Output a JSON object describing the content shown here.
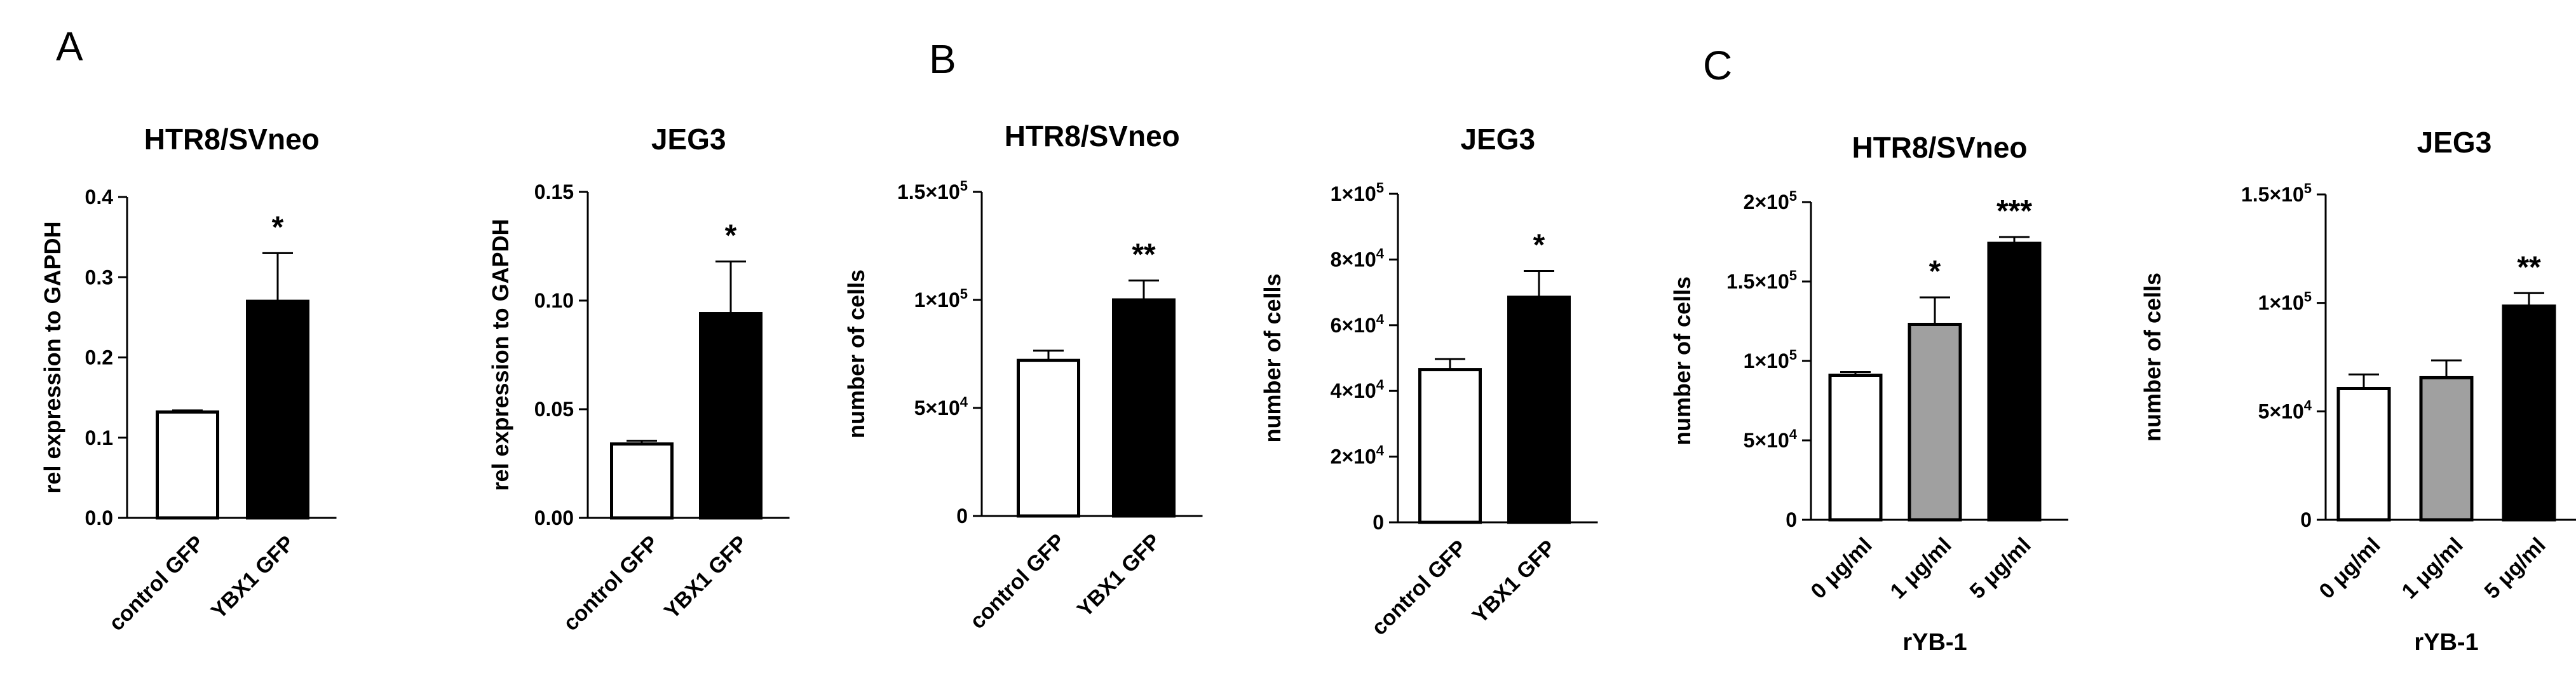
{
  "panel_labels": [
    "A",
    "B",
    "C"
  ],
  "chart_data": [
    {
      "type": "bar",
      "panel": "A",
      "title": "HTR8/SVneo",
      "ylabel": "rel expression to GAPDH",
      "xlabel": "",
      "categories": [
        "control GFP",
        "YBX1 GFP"
      ],
      "values": [
        0.132,
        0.27
      ],
      "errors": [
        0.002,
        0.06
      ],
      "fills": [
        "#ffffff",
        "#000000"
      ],
      "significance": [
        "",
        "*"
      ],
      "ylim": [
        0,
        0.4
      ],
      "yticks": [
        0,
        0.1,
        0.2,
        0.3,
        0.4
      ],
      "ytick_labels": [
        "0.0",
        "0.1",
        "0.2",
        "0.3",
        "0.4"
      ]
    },
    {
      "type": "bar",
      "panel": "A",
      "title": "JEG3",
      "ylabel": "rel expression to GAPDH",
      "xlabel": "",
      "categories": [
        "control GFP",
        "YBX1 GFP"
      ],
      "values": [
        0.034,
        0.094
      ],
      "errors": [
        0.0015,
        0.024
      ],
      "fills": [
        "#ffffff",
        "#000000"
      ],
      "significance": [
        "",
        "*"
      ],
      "ylim": [
        0,
        0.15
      ],
      "yticks": [
        0,
        0.05,
        0.1,
        0.15
      ],
      "ytick_labels": [
        "0.00",
        "0.05",
        "0.10",
        "0.15"
      ]
    },
    {
      "type": "bar",
      "panel": "B",
      "title": "HTR8/SVneo",
      "ylabel": "number of cells",
      "xlabel": "",
      "categories": [
        "control GFP",
        "YBX1 GFP"
      ],
      "values": [
        72000,
        100000
      ],
      "errors": [
        4500,
        9000
      ],
      "fills": [
        "#ffffff",
        "#000000"
      ],
      "significance": [
        "",
        "**"
      ],
      "ylim": [
        0,
        150000
      ],
      "yticks": [
        0,
        50000,
        100000,
        150000
      ],
      "ytick_labels": [
        "0",
        "5×10^4",
        "1×10^5",
        "1.5×10^5"
      ]
    },
    {
      "type": "bar",
      "panel": "B",
      "title": "JEG3",
      "ylabel": "number of cells",
      "xlabel": "",
      "categories": [
        "control GFP",
        "YBX1 GFP"
      ],
      "values": [
        46500,
        68500
      ],
      "errors": [
        3200,
        8000
      ],
      "fills": [
        "#ffffff",
        "#000000"
      ],
      "significance": [
        "",
        "*"
      ],
      "ylim": [
        0,
        100000
      ],
      "yticks": [
        0,
        20000,
        40000,
        60000,
        80000,
        100000
      ],
      "ytick_labels": [
        "0",
        "2×10^4",
        "4×10^4",
        "6×10^4",
        "8×10^4",
        "1×10^5"
      ]
    },
    {
      "type": "bar",
      "panel": "C",
      "title": "HTR8/SVneo",
      "ylabel": "number of cells",
      "xlabel": "rYB-1",
      "categories": [
        "0 μg/ml",
        "1 μg/ml",
        "5 μg/ml"
      ],
      "values": [
        91000,
        123000,
        174000
      ],
      "errors": [
        2000,
        17000,
        4000
      ],
      "fills": [
        "#ffffff",
        "#a0a0a0",
        "#000000"
      ],
      "significance": [
        "",
        "*",
        "***"
      ],
      "ylim": [
        0,
        200000
      ],
      "yticks": [
        0,
        50000,
        100000,
        150000,
        200000
      ],
      "ytick_labels": [
        "0",
        "5×10^4",
        "1×10^5",
        "1.5×10^5",
        "2×10^5"
      ]
    },
    {
      "type": "bar",
      "panel": "C",
      "title": "JEG3",
      "ylabel": "number of cells",
      "xlabel": "rYB-1",
      "categories": [
        "0 μg/ml",
        "1 μg/ml",
        "5 μg/ml"
      ],
      "values": [
        60500,
        65500,
        98500
      ],
      "errors": [
        6500,
        8000,
        6000
      ],
      "fills": [
        "#ffffff",
        "#a0a0a0",
        "#000000"
      ],
      "significance": [
        "",
        "",
        "**"
      ],
      "ylim": [
        0,
        150000
      ],
      "yticks": [
        0,
        50000,
        100000,
        150000
      ],
      "ytick_labels": [
        "0",
        "5×10^4",
        "1×10^5",
        "1.5×10^5"
      ]
    }
  ]
}
